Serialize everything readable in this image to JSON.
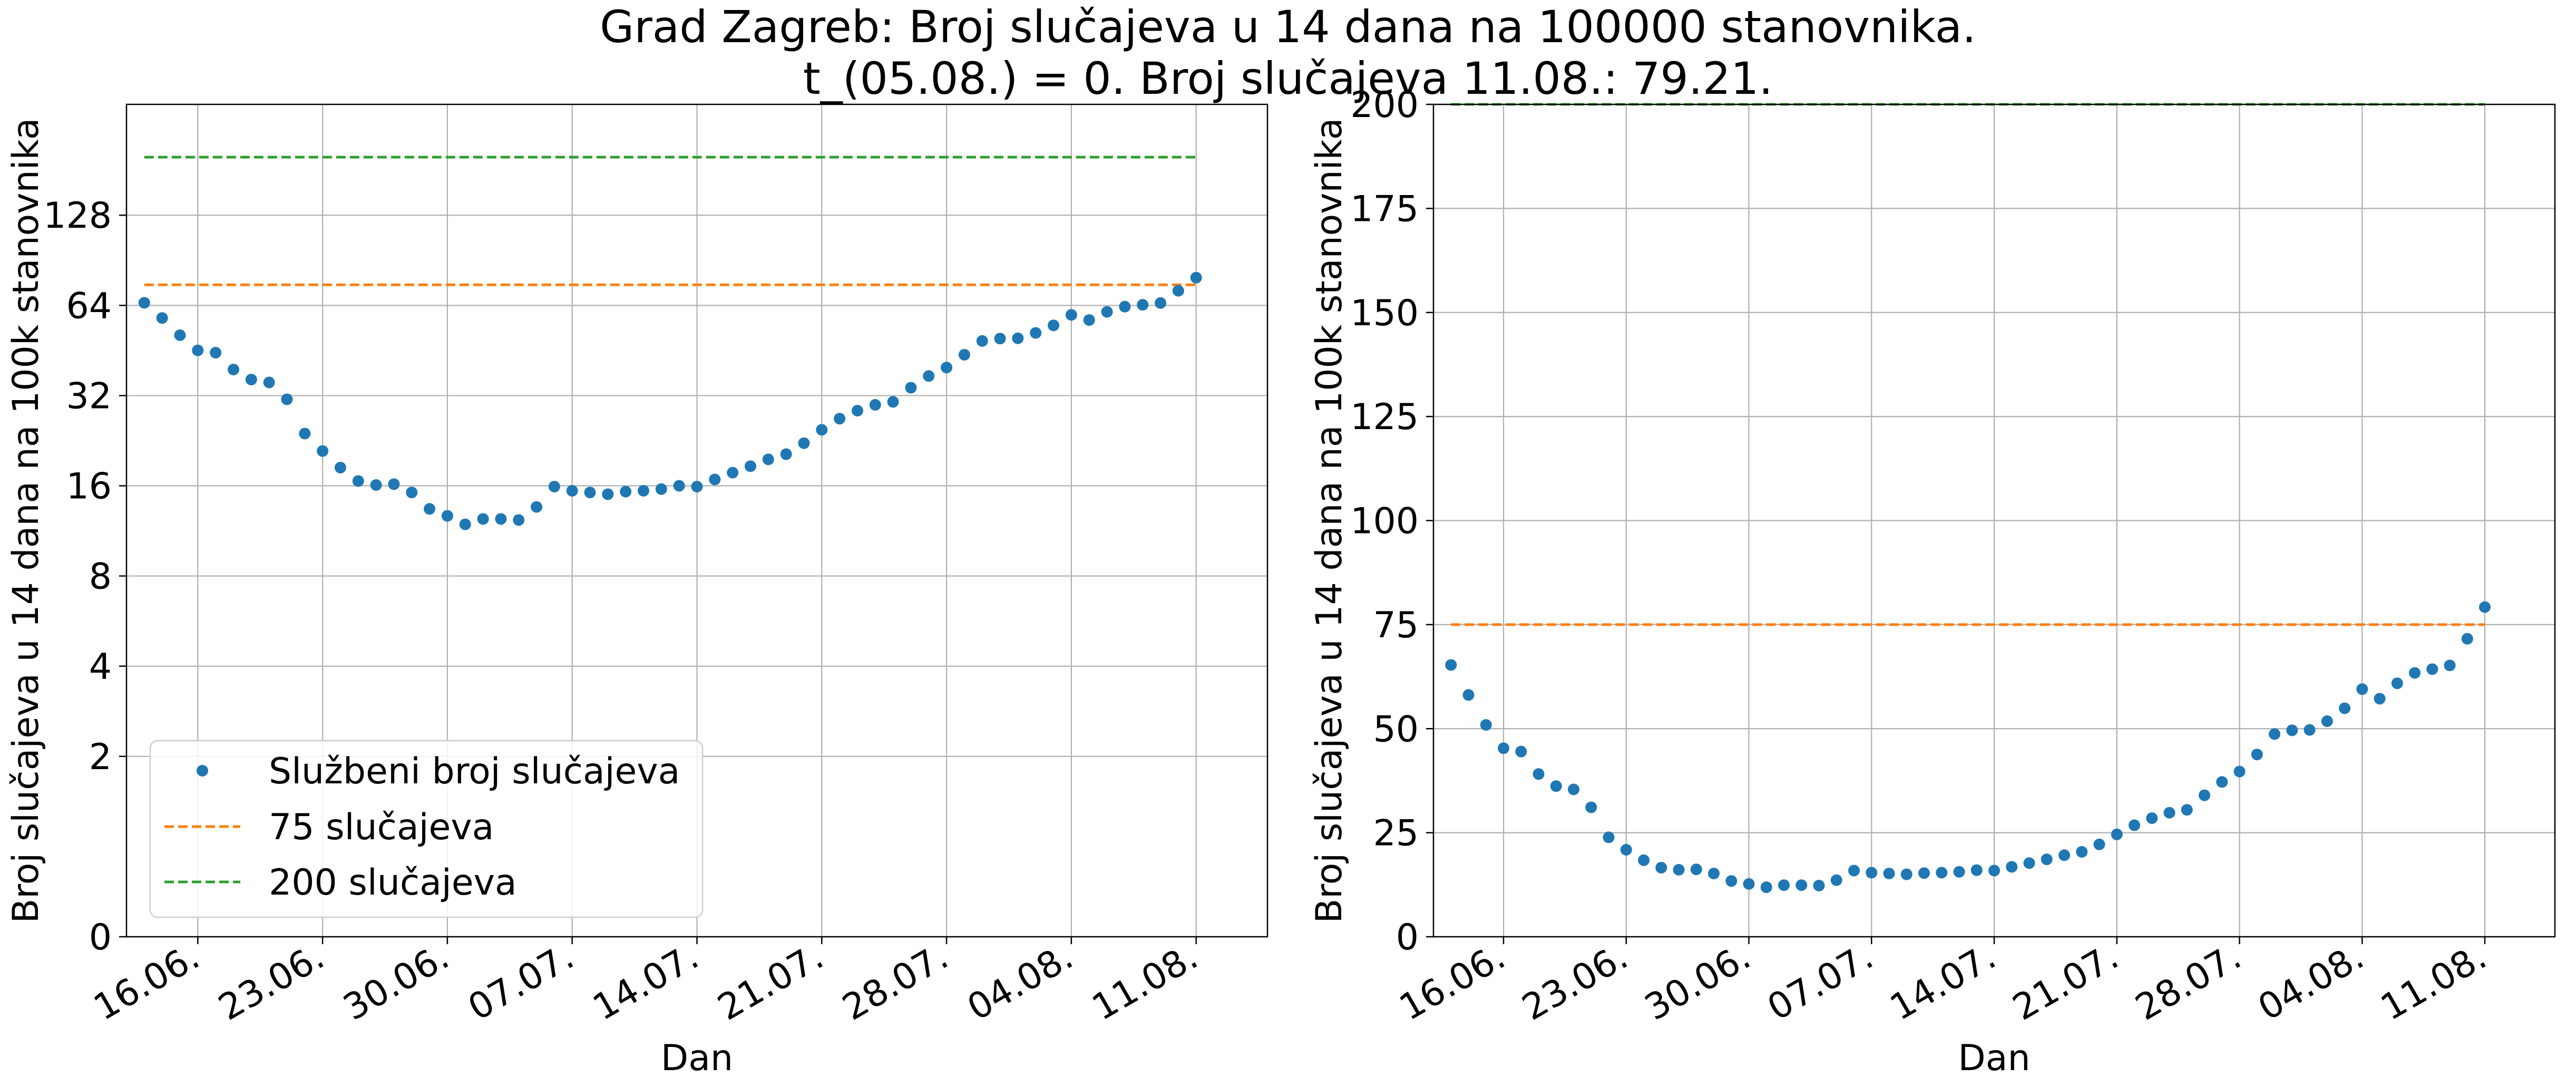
{
  "figure": {
    "title_line1": "Grad Zagreb: Broj slučajeva u 14 dana na 100000 stanovnika.",
    "title_line2": "t_(05.08.) = 0. Broj slučajeva 11.08.: 79.21."
  },
  "colors": {
    "series": "#1f77b4",
    "threshold_75": "#ff7f0e",
    "threshold_200": "#2ca02c",
    "grid": "#b0b0b0"
  },
  "chart_data": [
    {
      "type": "scatter",
      "yscale": "symlog-base2",
      "xlabel": "Dan",
      "ylabel": "Broj slučajeva u 14 dana na 100k stanovnika",
      "xlim": [
        -1,
        63
      ],
      "ylim": [
        0,
        300
      ],
      "grid": true,
      "legend_position": "lower-left",
      "x_ticks": [
        {
          "day": 3,
          "label": "16.06."
        },
        {
          "day": 10,
          "label": "23.06."
        },
        {
          "day": 17,
          "label": "30.06."
        },
        {
          "day": 24,
          "label": "07.07."
        },
        {
          "day": 31,
          "label": "14.07."
        },
        {
          "day": 38,
          "label": "21.07."
        },
        {
          "day": 45,
          "label": "28.07."
        },
        {
          "day": 52,
          "label": "04.08."
        },
        {
          "day": 59,
          "label": "11.08."
        }
      ],
      "y_ticks": [
        {
          "value": 0,
          "label": "0"
        },
        {
          "value": 2,
          "label": "2"
        },
        {
          "value": 4,
          "label": "4"
        },
        {
          "value": 8,
          "label": "8"
        },
        {
          "value": 16,
          "label": "16"
        },
        {
          "value": 32,
          "label": "32"
        },
        {
          "value": 64,
          "label": "64"
        },
        {
          "value": 128,
          "label": "128"
        }
      ],
      "series": [
        {
          "name": "Službeni broj slučajeva",
          "style": "points"
        },
        {
          "name": "75 slučajeva",
          "style": "dashed",
          "value": 75
        },
        {
          "name": "200 slučajeva",
          "style": "dashed",
          "value": 200
        }
      ]
    },
    {
      "type": "scatter",
      "yscale": "linear",
      "xlabel": "Dan",
      "ylabel": "Broj slučajeva u 14 dana na 100k stanovnika",
      "xlim": [
        -1,
        63
      ],
      "ylim": [
        0,
        200
      ],
      "grid": true,
      "x_ticks": [
        {
          "day": 3,
          "label": "16.06."
        },
        {
          "day": 10,
          "label": "23.06."
        },
        {
          "day": 17,
          "label": "30.06."
        },
        {
          "day": 24,
          "label": "07.07."
        },
        {
          "day": 31,
          "label": "14.07."
        },
        {
          "day": 38,
          "label": "21.07."
        },
        {
          "day": 45,
          "label": "28.07."
        },
        {
          "day": 52,
          "label": "04.08."
        },
        {
          "day": 59,
          "label": "11.08."
        }
      ],
      "y_ticks": [
        {
          "value": 0,
          "label": "0"
        },
        {
          "value": 25,
          "label": "25"
        },
        {
          "value": 50,
          "label": "50"
        },
        {
          "value": 75,
          "label": "75"
        },
        {
          "value": 100,
          "label": "100"
        },
        {
          "value": 125,
          "label": "125"
        },
        {
          "value": 150,
          "label": "150"
        },
        {
          "value": 175,
          "label": "175"
        },
        {
          "value": 200,
          "label": "200"
        }
      ]
    }
  ],
  "observations": {
    "days": [
      0,
      1,
      2,
      3,
      4,
      5,
      6,
      7,
      8,
      9,
      10,
      11,
      12,
      13,
      14,
      15,
      16,
      17,
      18,
      19,
      20,
      21,
      22,
      23,
      24,
      25,
      26,
      27,
      28,
      29,
      30,
      31,
      32,
      33,
      34,
      35,
      36,
      37,
      38,
      39,
      40,
      41,
      42,
      43,
      44,
      45,
      46,
      47,
      48,
      49,
      50,
      51,
      52,
      53,
      54,
      55,
      56,
      57,
      58,
      59
    ],
    "values": [
      65.3,
      58.1,
      50.9,
      45.3,
      44.5,
      39.1,
      36.2,
      35.4,
      31.1,
      23.9,
      20.9,
      18.4,
      16.6,
      16.1,
      16.2,
      15.2,
      13.4,
      12.7,
      11.9,
      12.4,
      12.4,
      12.3,
      13.6,
      15.9,
      15.4,
      15.2,
      15.0,
      15.3,
      15.4,
      15.6,
      16.0,
      15.9,
      16.8,
      17.7,
      18.6,
      19.6,
      20.4,
      22.2,
      24.6,
      26.8,
      28.5,
      29.8,
      30.5,
      34.0,
      37.2,
      39.7,
      43.8,
      48.7,
      49.6,
      49.7,
      51.8,
      54.9,
      59.5,
      57.2,
      60.9,
      63.4,
      64.3,
      65.2,
      71.6,
      79.21
    ]
  }
}
